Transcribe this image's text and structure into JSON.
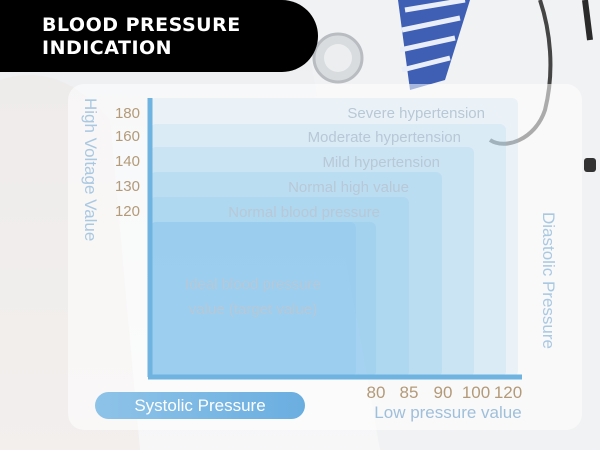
{
  "header": {
    "title": "BLOOD PRESSURE INDICATION"
  },
  "labels": {
    "left_axis": "High Voltage Value",
    "right_axis": "Diastolic Pressure",
    "x_axis": "Low pressure value",
    "systolic": "Systolic Pressure"
  },
  "colors": {
    "header_bg": "#000000",
    "zone_fill": "#8cc8ee",
    "axis": "#6fb3e0",
    "tick_text": "#b39a78",
    "label_text": "#9fbfda",
    "zone_text": "#b8c8d6"
  },
  "chart_data": {
    "type": "nested-area",
    "ylabel": "High Voltage Value",
    "xlabel": "Low pressure value",
    "y_ticks": [
      120,
      130,
      140,
      160,
      180
    ],
    "x_ticks": [
      80,
      85,
      90,
      100,
      120
    ],
    "zones": [
      {
        "name": "Ideal blood pressure value (target value)",
        "systolic_max": 120,
        "diastolic_max": 80,
        "label_lines": [
          "Ideal blood pressure",
          "value (target value)"
        ]
      },
      {
        "name": "Normal blood pressure",
        "systolic_max": 130,
        "diastolic_max": 85
      },
      {
        "name": "Normal high value",
        "systolic_max": 140,
        "diastolic_max": 90
      },
      {
        "name": "Mild hypertension",
        "systolic_max": 160,
        "diastolic_max": 100
      },
      {
        "name": "Moderate hypertension",
        "systolic_max": 180,
        "diastolic_max": 120
      },
      {
        "name": "Severe hypertension",
        "systolic_max": null,
        "diastolic_max": null
      }
    ]
  }
}
